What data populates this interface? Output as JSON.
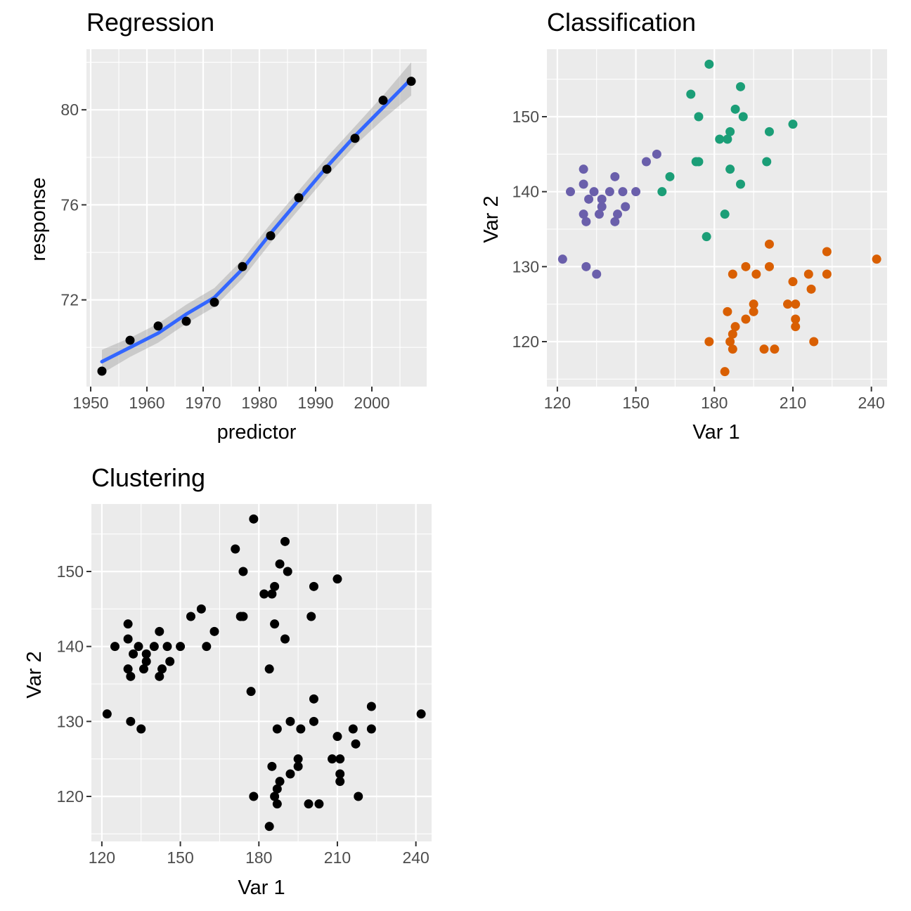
{
  "chart_data": [
    {
      "type": "scatter",
      "title": "Regression",
      "xlabel": "predictor",
      "ylabel": "response",
      "xlim": [
        1949.25,
        2009.75
      ],
      "ylim": [
        68.35,
        82.55
      ],
      "x_ticks": [
        1950,
        1960,
        1970,
        1980,
        1990,
        2000
      ],
      "y_ticks": [
        72,
        76,
        80
      ],
      "grid": true,
      "point_color": "#000000",
      "smooth_color": "#3366ff",
      "band_color": "#999999",
      "points": [
        {
          "x": 1952,
          "y": 69.0
        },
        {
          "x": 1957,
          "y": 70.3
        },
        {
          "x": 1962,
          "y": 70.9
        },
        {
          "x": 1967,
          "y": 71.1
        },
        {
          "x": 1972,
          "y": 71.9
        },
        {
          "x": 1977,
          "y": 73.4
        },
        {
          "x": 1982,
          "y": 74.7
        },
        {
          "x": 1987,
          "y": 76.3
        },
        {
          "x": 1992,
          "y": 77.5
        },
        {
          "x": 1997,
          "y": 78.8
        },
        {
          "x": 2002,
          "y": 80.4
        },
        {
          "x": 2007,
          "y": 81.2
        }
      ],
      "smooth": [
        {
          "x": 1952,
          "y": 69.4,
          "lo": 68.9,
          "hi": 69.9
        },
        {
          "x": 1957,
          "y": 70.0,
          "lo": 69.6,
          "hi": 70.4
        },
        {
          "x": 1962,
          "y": 70.6,
          "lo": 70.2,
          "hi": 71.0
        },
        {
          "x": 1967,
          "y": 71.4,
          "lo": 71.0,
          "hi": 71.8
        },
        {
          "x": 1972,
          "y": 72.1,
          "lo": 71.7,
          "hi": 72.5
        },
        {
          "x": 1977,
          "y": 73.3,
          "lo": 72.9,
          "hi": 73.7
        },
        {
          "x": 1982,
          "y": 74.8,
          "lo": 74.4,
          "hi": 75.2
        },
        {
          "x": 1987,
          "y": 76.2,
          "lo": 75.8,
          "hi": 76.6
        },
        {
          "x": 1992,
          "y": 77.6,
          "lo": 77.2,
          "hi": 78.0
        },
        {
          "x": 1997,
          "y": 78.9,
          "lo": 78.5,
          "hi": 79.3
        },
        {
          "x": 2002,
          "y": 80.1,
          "lo": 79.6,
          "hi": 80.6
        },
        {
          "x": 2007,
          "y": 81.3,
          "lo": 80.6,
          "hi": 82.0
        }
      ]
    },
    {
      "type": "scatter",
      "title": "Classification",
      "xlabel": "Var 1",
      "ylabel": "Var 2",
      "xlim": [
        116.0,
        246.0
      ],
      "ylim": [
        114.0,
        159.0
      ],
      "x_ticks": [
        120,
        150,
        180,
        210,
        240
      ],
      "y_ticks": [
        120,
        130,
        140,
        150
      ],
      "grid": true,
      "group_colors": {
        "A": "#6a5fab",
        "B": "#1b9e77",
        "C": "#d95f02"
      },
      "points": [
        {
          "x": 122,
          "y": 131,
          "g": "A"
        },
        {
          "x": 125,
          "y": 140,
          "g": "A"
        },
        {
          "x": 130,
          "y": 143,
          "g": "A"
        },
        {
          "x": 130,
          "y": 141,
          "g": "A"
        },
        {
          "x": 130,
          "y": 137,
          "g": "A"
        },
        {
          "x": 131,
          "y": 136,
          "g": "A"
        },
        {
          "x": 131,
          "y": 130,
          "g": "A"
        },
        {
          "x": 132,
          "y": 139,
          "g": "A"
        },
        {
          "x": 134,
          "y": 140,
          "g": "A"
        },
        {
          "x": 135,
          "y": 129,
          "g": "A"
        },
        {
          "x": 136,
          "y": 137,
          "g": "A"
        },
        {
          "x": 137,
          "y": 138,
          "g": "A"
        },
        {
          "x": 137,
          "y": 139,
          "g": "A"
        },
        {
          "x": 140,
          "y": 140,
          "g": "A"
        },
        {
          "x": 142,
          "y": 136,
          "g": "A"
        },
        {
          "x": 142,
          "y": 142,
          "g": "A"
        },
        {
          "x": 143,
          "y": 137,
          "g": "A"
        },
        {
          "x": 145,
          "y": 140,
          "g": "A"
        },
        {
          "x": 146,
          "y": 138,
          "g": "A"
        },
        {
          "x": 150,
          "y": 140,
          "g": "A"
        },
        {
          "x": 154,
          "y": 144,
          "g": "A"
        },
        {
          "x": 158,
          "y": 145,
          "g": "A"
        },
        {
          "x": 160,
          "y": 140,
          "g": "B"
        },
        {
          "x": 163,
          "y": 142,
          "g": "B"
        },
        {
          "x": 171,
          "y": 153,
          "g": "B"
        },
        {
          "x": 173,
          "y": 144,
          "g": "B"
        },
        {
          "x": 174,
          "y": 144,
          "g": "B"
        },
        {
          "x": 174,
          "y": 150,
          "g": "B"
        },
        {
          "x": 177,
          "y": 134,
          "g": "B"
        },
        {
          "x": 178,
          "y": 157,
          "g": "B"
        },
        {
          "x": 182,
          "y": 147,
          "g": "B"
        },
        {
          "x": 184,
          "y": 137,
          "g": "B"
        },
        {
          "x": 185,
          "y": 147,
          "g": "B"
        },
        {
          "x": 186,
          "y": 148,
          "g": "B"
        },
        {
          "x": 186,
          "y": 143,
          "g": "B"
        },
        {
          "x": 188,
          "y": 151,
          "g": "B"
        },
        {
          "x": 190,
          "y": 154,
          "g": "B"
        },
        {
          "x": 190,
          "y": 141,
          "g": "B"
        },
        {
          "x": 191,
          "y": 150,
          "g": "B"
        },
        {
          "x": 200,
          "y": 144,
          "g": "B"
        },
        {
          "x": 201,
          "y": 148,
          "g": "B"
        },
        {
          "x": 210,
          "y": 149,
          "g": "B"
        },
        {
          "x": 178,
          "y": 120,
          "g": "C"
        },
        {
          "x": 184,
          "y": 116,
          "g": "C"
        },
        {
          "x": 185,
          "y": 124,
          "g": "C"
        },
        {
          "x": 186,
          "y": 120,
          "g": "C"
        },
        {
          "x": 187,
          "y": 119,
          "g": "C"
        },
        {
          "x": 187,
          "y": 121,
          "g": "C"
        },
        {
          "x": 187,
          "y": 129,
          "g": "C"
        },
        {
          "x": 188,
          "y": 122,
          "g": "C"
        },
        {
          "x": 192,
          "y": 130,
          "g": "C"
        },
        {
          "x": 192,
          "y": 123,
          "g": "C"
        },
        {
          "x": 195,
          "y": 125,
          "g": "C"
        },
        {
          "x": 195,
          "y": 124,
          "g": "C"
        },
        {
          "x": 196,
          "y": 129,
          "g": "C"
        },
        {
          "x": 199,
          "y": 119,
          "g": "C"
        },
        {
          "x": 201,
          "y": 133,
          "g": "C"
        },
        {
          "x": 201,
          "y": 130,
          "g": "C"
        },
        {
          "x": 203,
          "y": 119,
          "g": "C"
        },
        {
          "x": 208,
          "y": 125,
          "g": "C"
        },
        {
          "x": 210,
          "y": 128,
          "g": "C"
        },
        {
          "x": 211,
          "y": 125,
          "g": "C"
        },
        {
          "x": 211,
          "y": 123,
          "g": "C"
        },
        {
          "x": 211,
          "y": 122,
          "g": "C"
        },
        {
          "x": 216,
          "y": 129,
          "g": "C"
        },
        {
          "x": 217,
          "y": 127,
          "g": "C"
        },
        {
          "x": 218,
          "y": 120,
          "g": "C"
        },
        {
          "x": 223,
          "y": 129,
          "g": "C"
        },
        {
          "x": 223,
          "y": 132,
          "g": "C"
        },
        {
          "x": 242,
          "y": 131,
          "g": "C"
        }
      ]
    },
    {
      "type": "scatter",
      "title": "Clustering",
      "xlabel": "Var 1",
      "ylabel": "Var 2",
      "xlim": [
        116.0,
        246.0
      ],
      "ylim": [
        114.0,
        159.0
      ],
      "x_ticks": [
        120,
        150,
        180,
        210,
        240
      ],
      "y_ticks": [
        120,
        130,
        140,
        150
      ],
      "grid": true,
      "point_color": "#000000",
      "points": [
        {
          "x": 122,
          "y": 131
        },
        {
          "x": 125,
          "y": 140
        },
        {
          "x": 130,
          "y": 143
        },
        {
          "x": 130,
          "y": 141
        },
        {
          "x": 130,
          "y": 137
        },
        {
          "x": 131,
          "y": 136
        },
        {
          "x": 131,
          "y": 130
        },
        {
          "x": 132,
          "y": 139
        },
        {
          "x": 134,
          "y": 140
        },
        {
          "x": 135,
          "y": 129
        },
        {
          "x": 136,
          "y": 137
        },
        {
          "x": 137,
          "y": 138
        },
        {
          "x": 137,
          "y": 139
        },
        {
          "x": 140,
          "y": 140
        },
        {
          "x": 142,
          "y": 136
        },
        {
          "x": 142,
          "y": 142
        },
        {
          "x": 143,
          "y": 137
        },
        {
          "x": 145,
          "y": 140
        },
        {
          "x": 146,
          "y": 138
        },
        {
          "x": 150,
          "y": 140
        },
        {
          "x": 154,
          "y": 144
        },
        {
          "x": 158,
          "y": 145
        },
        {
          "x": 160,
          "y": 140
        },
        {
          "x": 163,
          "y": 142
        },
        {
          "x": 171,
          "y": 153
        },
        {
          "x": 173,
          "y": 144
        },
        {
          "x": 174,
          "y": 144
        },
        {
          "x": 174,
          "y": 150
        },
        {
          "x": 177,
          "y": 134
        },
        {
          "x": 178,
          "y": 157
        },
        {
          "x": 182,
          "y": 147
        },
        {
          "x": 184,
          "y": 137
        },
        {
          "x": 185,
          "y": 147
        },
        {
          "x": 186,
          "y": 148
        },
        {
          "x": 186,
          "y": 143
        },
        {
          "x": 188,
          "y": 151
        },
        {
          "x": 190,
          "y": 154
        },
        {
          "x": 190,
          "y": 141
        },
        {
          "x": 191,
          "y": 150
        },
        {
          "x": 200,
          "y": 144
        },
        {
          "x": 201,
          "y": 148
        },
        {
          "x": 210,
          "y": 149
        },
        {
          "x": 178,
          "y": 120
        },
        {
          "x": 184,
          "y": 116
        },
        {
          "x": 185,
          "y": 124
        },
        {
          "x": 186,
          "y": 120
        },
        {
          "x": 187,
          "y": 119
        },
        {
          "x": 187,
          "y": 121
        },
        {
          "x": 187,
          "y": 129
        },
        {
          "x": 188,
          "y": 122
        },
        {
          "x": 192,
          "y": 130
        },
        {
          "x": 192,
          "y": 123
        },
        {
          "x": 195,
          "y": 125
        },
        {
          "x": 195,
          "y": 124
        },
        {
          "x": 196,
          "y": 129
        },
        {
          "x": 199,
          "y": 119
        },
        {
          "x": 201,
          "y": 133
        },
        {
          "x": 201,
          "y": 130
        },
        {
          "x": 203,
          "y": 119
        },
        {
          "x": 208,
          "y": 125
        },
        {
          "x": 210,
          "y": 128
        },
        {
          "x": 211,
          "y": 125
        },
        {
          "x": 211,
          "y": 123
        },
        {
          "x": 211,
          "y": 122
        },
        {
          "x": 216,
          "y": 129
        },
        {
          "x": 217,
          "y": 127
        },
        {
          "x": 218,
          "y": 120
        },
        {
          "x": 223,
          "y": 129
        },
        {
          "x": 223,
          "y": 132
        },
        {
          "x": 242,
          "y": 131
        }
      ]
    }
  ]
}
